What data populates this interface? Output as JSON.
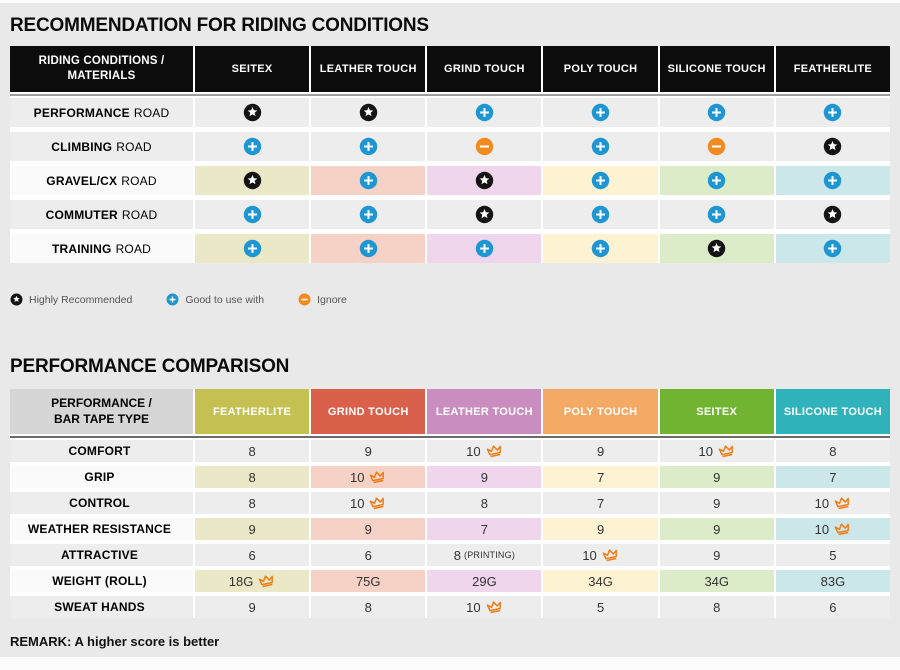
{
  "recommendation_table": {
    "title": "RECOMMENDATION FOR RIDING CONDITIONS",
    "header": {
      "label_lines": [
        "RIDING CONDITIONS /",
        "MATERIALS"
      ],
      "columns": [
        "SEITEX",
        "LEATHER TOUCH",
        "GRIND TOUCH",
        "POLY TOUCH",
        "SILICONE TOUCH",
        "FEATHERLITE"
      ]
    },
    "rows": [
      {
        "label_bold": "PERFORMANCE",
        "label_rest": "ROAD",
        "tinted": false,
        "cells": [
          "star",
          "star",
          "plus",
          "plus",
          "plus",
          "plus"
        ]
      },
      {
        "label_bold": "CLIMBING",
        "label_rest": "ROAD",
        "tinted": false,
        "cells": [
          "plus",
          "plus",
          "minus",
          "plus",
          "minus",
          "star"
        ]
      },
      {
        "label_bold": "GRAVEL/CX",
        "label_rest": "ROAD",
        "tinted": true,
        "cells": [
          "star",
          "plus",
          "star",
          "plus",
          "plus",
          "plus"
        ]
      },
      {
        "label_bold": "COMMUTER",
        "label_rest": "ROAD",
        "tinted": false,
        "cells": [
          "plus",
          "plus",
          "star",
          "plus",
          "plus",
          "star"
        ]
      },
      {
        "label_bold": "TRAINING",
        "label_rest": "ROAD",
        "tinted": true,
        "cells": [
          "plus",
          "plus",
          "plus",
          "plus",
          "star",
          "plus"
        ]
      }
    ],
    "legend": [
      {
        "icon": "star",
        "label": "Highly Recommended"
      },
      {
        "icon": "plus",
        "label": "Good to use with"
      },
      {
        "icon": "minus",
        "label": "Ignore"
      }
    ]
  },
  "performance_table": {
    "title": "PERFORMANCE COMPARISON",
    "header": {
      "label_lines": [
        "PERFORMANCE /",
        "BAR TAPE TYPE"
      ],
      "columns": [
        {
          "name": "FEATHERLITE",
          "color": "#c5c052"
        },
        {
          "name": "GRIND TOUCH",
          "color": "#d9614c"
        },
        {
          "name": "LEATHER TOUCH",
          "color": "#c98dc0"
        },
        {
          "name": "POLY TOUCH",
          "color": "#f4aa64"
        },
        {
          "name": "SEITEX",
          "color": "#70b431"
        },
        {
          "name": "SILICONE TOUCH",
          "color": "#31b3bb"
        }
      ]
    },
    "rows": [
      {
        "label": "COMFORT",
        "tinted": false,
        "cells": [
          {
            "value": "8"
          },
          {
            "value": "9"
          },
          {
            "value": "10",
            "crown": true
          },
          {
            "value": "9"
          },
          {
            "value": "10",
            "crown": true
          },
          {
            "value": "8"
          }
        ]
      },
      {
        "label": "GRIP",
        "tinted": true,
        "cells": [
          {
            "value": "8"
          },
          {
            "value": "10",
            "crown": true
          },
          {
            "value": "9"
          },
          {
            "value": "7"
          },
          {
            "value": "9"
          },
          {
            "value": "7"
          }
        ]
      },
      {
        "label": "CONTROL",
        "tinted": false,
        "cells": [
          {
            "value": "8"
          },
          {
            "value": "10",
            "crown": true
          },
          {
            "value": "8"
          },
          {
            "value": "7"
          },
          {
            "value": "9"
          },
          {
            "value": "10",
            "crown": true
          }
        ]
      },
      {
        "label": "WEATHER RESISTANCE",
        "tinted": true,
        "cells": [
          {
            "value": "9"
          },
          {
            "value": "9"
          },
          {
            "value": "7"
          },
          {
            "value": "9"
          },
          {
            "value": "9"
          },
          {
            "value": "10",
            "crown": true
          }
        ]
      },
      {
        "label": "ATTRACTIVE",
        "tinted": false,
        "cells": [
          {
            "value": "6"
          },
          {
            "value": "6"
          },
          {
            "value": "8",
            "suffix": "(PRINTING)"
          },
          {
            "value": "10",
            "crown": true
          },
          {
            "value": "9"
          },
          {
            "value": "5"
          }
        ]
      },
      {
        "label": "WEIGHT (ROLL)",
        "tinted": true,
        "cells": [
          {
            "value": "18G",
            "crown": true
          },
          {
            "value": "75G"
          },
          {
            "value": "29G"
          },
          {
            "value": "34G"
          },
          {
            "value": "34G"
          },
          {
            "value": "83G"
          }
        ]
      },
      {
        "label": "SWEAT HANDS",
        "tinted": false,
        "cells": [
          {
            "value": "9"
          },
          {
            "value": "8"
          },
          {
            "value": "10",
            "crown": true
          },
          {
            "value": "5"
          },
          {
            "value": "8"
          },
          {
            "value": "6"
          }
        ]
      }
    ],
    "remark": "REMARK: A higher score is better"
  },
  "colors": {
    "star": "#141414",
    "plus": "#1e96d2",
    "minus": "#f18b1f",
    "crown": "#ee7e18",
    "column_tints": [
      "#eae8c6",
      "#f6d1c6",
      "#efd6ec",
      "#fdf3d3",
      "#dcebc8",
      "#cbe7e9"
    ]
  }
}
